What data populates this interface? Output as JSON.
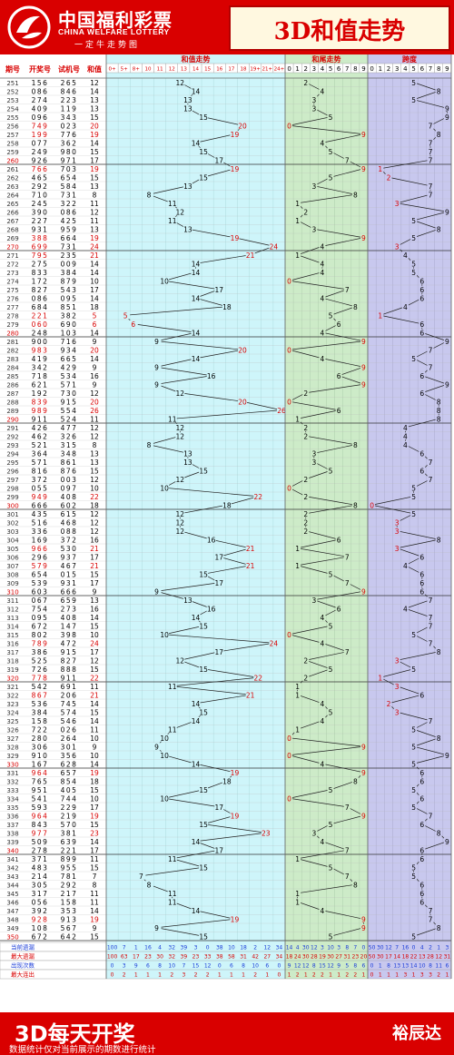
{
  "header": {
    "logo_cn": "中国福利彩票",
    "logo_en": "CHINA WELFARE LOTTERY",
    "logo_slogan": "一定牛走势图",
    "title": "3D和值走势"
  },
  "columns": {
    "period": "期号",
    "open": "开奖号",
    "test": "试机号",
    "sum": "和值",
    "sum_trend": "和值走势",
    "tail_trend": "和尾走势",
    "span_trend": "跨度"
  },
  "sum_axis": [
    "0+",
    "5+",
    "8+",
    "10",
    "11",
    "12",
    "13",
    "14",
    "15",
    "16",
    "17",
    "18",
    "19+",
    "21+",
    "24+"
  ],
  "digit_axis": [
    "0",
    "1",
    "2",
    "3",
    "4",
    "5",
    "6",
    "7",
    "8",
    "9"
  ],
  "stats": {
    "labels": [
      "当前遗漏",
      "最大遗漏",
      "出现次数",
      "最大连出"
    ],
    "sum": [
      [
        "100",
        "7",
        "1",
        "16",
        "4",
        "32",
        "39",
        "3",
        "0",
        "38",
        "10",
        "18",
        "2",
        "12",
        "34"
      ],
      [
        "100",
        "63",
        "17",
        "23",
        "30",
        "32",
        "39",
        "23",
        "33",
        "38",
        "58",
        "31",
        "42",
        "27",
        "34"
      ],
      [
        "0",
        "3",
        "9",
        "6",
        "8",
        "10",
        "7",
        "15",
        "12",
        "0",
        "6",
        "8",
        "10",
        "6",
        "0"
      ],
      [
        "0",
        "2",
        "1",
        "1",
        "1",
        "2",
        "3",
        "2",
        "2",
        "1",
        "1",
        "1",
        "2",
        "1",
        "0"
      ]
    ],
    "tail": [
      [
        "14",
        "4",
        "30",
        "12",
        "3",
        "10",
        "3",
        "8",
        "7",
        "0"
      ],
      [
        "18",
        "24",
        "30",
        "28",
        "19",
        "30",
        "27",
        "31",
        "23",
        "20"
      ],
      [
        "9",
        "12",
        "12",
        "8",
        "15",
        "12",
        "9",
        "5",
        "8",
        "6"
      ],
      [
        "1",
        "2",
        "1",
        "2",
        "2",
        "1",
        "1",
        "2",
        "2",
        "1"
      ]
    ],
    "span": [
      [
        "50",
        "30",
        "12",
        "7",
        "16",
        "0",
        "4",
        "2",
        "1",
        "3"
      ],
      [
        "50",
        "30",
        "17",
        "14",
        "18",
        "22",
        "13",
        "28",
        "12",
        "31"
      ],
      [
        "0",
        "1",
        "8",
        "13",
        "13",
        "14",
        "10",
        "8",
        "11",
        "6"
      ],
      [
        "0",
        "1",
        "1",
        "1",
        "3",
        "1",
        "3",
        "3",
        "2",
        "1"
      ]
    ]
  },
  "footer": {
    "big": "3D每天开奖",
    "small": "数据统计仅对当前展示的期数进行统计",
    "brand": "裕辰达"
  },
  "colors": {
    "red": "#d90000",
    "blue": "#1a3cd8",
    "cyan": "#cef5fa",
    "green": "#cdebc8",
    "purple": "#c8c8ee"
  },
  "chart_data": {
    "type": "line",
    "title": "3D和值走势",
    "periods": [
      "251",
      "252",
      "253",
      "254",
      "255",
      "256",
      "257",
      "258",
      "259",
      "260",
      "261",
      "262",
      "263",
      "264",
      "265",
      "266",
      "267",
      "268",
      "269",
      "270",
      "271",
      "272",
      "273",
      "274",
      "275",
      "276",
      "277",
      "278",
      "279",
      "280",
      "281",
      "282",
      "283",
      "284",
      "285",
      "286",
      "287",
      "288",
      "289",
      "290",
      "291",
      "292",
      "293",
      "294",
      "295",
      "296",
      "297",
      "298",
      "299",
      "300",
      "301",
      "302",
      "303",
      "304",
      "305",
      "306",
      "307",
      "308",
      "309",
      "310",
      "311",
      "312",
      "313",
      "314",
      "315",
      "316",
      "317",
      "318",
      "319",
      "320",
      "321",
      "322",
      "323",
      "324",
      "325",
      "326",
      "327",
      "328",
      "329",
      "330",
      "331",
      "332",
      "333",
      "334",
      "335",
      "336",
      "337",
      "338",
      "339",
      "340",
      "341",
      "342",
      "343",
      "344",
      "345",
      "346",
      "347",
      "348",
      "349",
      "350"
    ],
    "open": [
      "156",
      "086",
      "274",
      "409",
      "096",
      "749",
      "199",
      "077",
      "249",
      "926",
      "766",
      "465",
      "292",
      "710",
      "245",
      "390",
      "227",
      "931",
      "388",
      "699",
      "795",
      "275",
      "833",
      "172",
      "827",
      "086",
      "684",
      "221",
      "060",
      "248",
      "900",
      "983",
      "419",
      "342",
      "718",
      "621",
      "192",
      "839",
      "989",
      "911",
      "426",
      "462",
      "521",
      "364",
      "571",
      "816",
      "372",
      "055",
      "949",
      "666",
      "435",
      "516",
      "336",
      "169",
      "966",
      "296",
      "579",
      "654",
      "539",
      "603",
      "067",
      "754",
      "095",
      "672",
      "802",
      "789",
      "386",
      "525",
      "726",
      "778",
      "542",
      "867",
      "536",
      "384",
      "158",
      "722",
      "280",
      "306",
      "910",
      "167",
      "964",
      "765",
      "951",
      "541",
      "593",
      "964",
      "843",
      "977",
      "509",
      "278",
      "371",
      "483",
      "214",
      "305",
      "317",
      "056",
      "392",
      "928",
      "108",
      "672"
    ],
    "test": [
      "265",
      "846",
      "223",
      "119",
      "343",
      "023",
      "776",
      "362",
      "980",
      "971",
      "703",
      "654",
      "584",
      "731",
      "322",
      "086",
      "425",
      "959",
      "664",
      "731",
      "235",
      "009",
      "384",
      "879",
      "543",
      "095",
      "851",
      "382",
      "690",
      "103",
      "716",
      "934",
      "665",
      "429",
      "534",
      "571",
      "730",
      "915",
      "554",
      "524",
      "477",
      "326",
      "315",
      "348",
      "861",
      "876",
      "003",
      "097",
      "408",
      "602",
      "615",
      "468",
      "088",
      "372",
      "530",
      "937",
      "467",
      "015",
      "931",
      "666",
      "659",
      "273",
      "408",
      "147",
      "398",
      "472",
      "915",
      "827",
      "888",
      "911",
      "691",
      "206",
      "745",
      "574",
      "546",
      "026",
      "264",
      "301",
      "356",
      "628",
      "657",
      "854",
      "405",
      "744",
      "229",
      "219",
      "570",
      "381",
      "639",
      "221",
      "899",
      "955",
      "781",
      "292",
      "217",
      "158",
      "353",
      "913",
      "567",
      "642"
    ],
    "sum": [
      12,
      14,
      13,
      13,
      15,
      20,
      19,
      14,
      15,
      17,
      19,
      15,
      13,
      8,
      11,
      12,
      11,
      13,
      19,
      24,
      21,
      14,
      14,
      10,
      17,
      14,
      18,
      5,
      6,
      14,
      9,
      20,
      14,
      9,
      16,
      9,
      12,
      20,
      26,
      11,
      12,
      12,
      8,
      13,
      13,
      15,
      12,
      10,
      22,
      18,
      12,
      12,
      12,
      16,
      21,
      17,
      21,
      15,
      17,
      9,
      13,
      16,
      14,
      15,
      10,
      24,
      17,
      12,
      15,
      22,
      11,
      21,
      14,
      15,
      14,
      11,
      10,
      9,
      10,
      14,
      19,
      18,
      15,
      10,
      17,
      19,
      15,
      23,
      14,
      17,
      11,
      15,
      7,
      8,
      11,
      11,
      14,
      19,
      9,
      15
    ],
    "tail": [
      2,
      4,
      3,
      3,
      5,
      0,
      9,
      4,
      5,
      7,
      9,
      5,
      3,
      8,
      1,
      2,
      1,
      3,
      9,
      4,
      1,
      4,
      4,
      0,
      7,
      4,
      8,
      5,
      6,
      4,
      9,
      0,
      4,
      9,
      6,
      9,
      2,
      0,
      6,
      1,
      2,
      2,
      8,
      3,
      3,
      5,
      2,
      0,
      2,
      8,
      2,
      2,
      2,
      6,
      1,
      7,
      1,
      5,
      7,
      9,
      3,
      6,
      4,
      5,
      0,
      4,
      7,
      2,
      5,
      2,
      1,
      1,
      4,
      5,
      4,
      1,
      0,
      9,
      0,
      4,
      9,
      8,
      5,
      0,
      7,
      9,
      5,
      3,
      4,
      7,
      1,
      5,
      7,
      8,
      1,
      1,
      4,
      9,
      9,
      5
    ],
    "span": [
      5,
      8,
      5,
      9,
      9,
      7,
      8,
      7,
      7,
      7,
      1,
      2,
      7,
      7,
      3,
      9,
      5,
      8,
      5,
      3,
      4,
      5,
      5,
      6,
      6,
      6,
      4,
      1,
      6,
      6,
      9,
      7,
      5,
      7,
      6,
      9,
      6,
      8,
      8,
      8,
      4,
      4,
      4,
      6,
      7,
      6,
      7,
      5,
      5,
      0,
      5,
      3,
      3,
      8,
      3,
      6,
      4,
      6,
      6,
      6,
      7,
      4,
      7,
      7,
      5,
      7,
      8,
      3,
      5,
      1,
      3,
      6,
      2,
      3,
      7,
      5,
      8,
      5,
      9,
      5,
      6,
      6,
      5,
      6,
      5,
      7,
      6,
      8,
      9,
      6,
      6,
      5,
      5,
      6,
      6,
      6,
      7,
      7,
      8,
      5
    ],
    "ylabel": "和值"
  }
}
